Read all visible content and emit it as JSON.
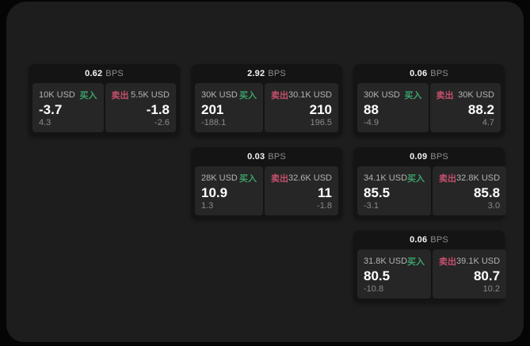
{
  "app": {
    "unit_label": "BPS",
    "buy_label": "买入",
    "sell_label": "卖出"
  },
  "colors": {
    "buy": "#3ca26a",
    "sell": "#c4506b",
    "page_bg": "#050505",
    "panel_bg": "#1d1d1e",
    "card_bg": "#141414",
    "pane_bg": "#262626",
    "value_text": "#ffffff",
    "label_text": "#b3b3b3",
    "muted_text": "#8a8a8a"
  },
  "cards": [
    {
      "bps": "0.62",
      "buy": {
        "amount": "10K USD",
        "value": "-3.7",
        "sub": "4.3"
      },
      "sell": {
        "amount": "5.5K USD",
        "value": "-1.8",
        "sub": "-2.6"
      }
    },
    {
      "bps": "2.92",
      "buy": {
        "amount": "30K USD",
        "value": "201",
        "sub": "-188.1"
      },
      "sell": {
        "amount": "30.1K USD",
        "value": "210",
        "sub": "196.5"
      }
    },
    {
      "bps": "0.06",
      "buy": {
        "amount": "30K USD",
        "value": "88",
        "sub": "-4.9"
      },
      "sell": {
        "amount": "30K USD",
        "value": "88.2",
        "sub": "4.7"
      }
    },
    {
      "bps": "0.03",
      "buy": {
        "amount": "28K USD",
        "value": "10.9",
        "sub": "1.3"
      },
      "sell": {
        "amount": "32.6K USD",
        "value": "11",
        "sub": "-1.8"
      }
    },
    {
      "bps": "0.09",
      "buy": {
        "amount": "34.1K USD",
        "value": "85.5",
        "sub": "-3.1"
      },
      "sell": {
        "amount": "32.8K USD",
        "value": "85.8",
        "sub": "3.0"
      }
    },
    {
      "bps": "0.06",
      "buy": {
        "amount": "31.8K USD",
        "value": "80.5",
        "sub": "-10.8"
      },
      "sell": {
        "amount": "39.1K USD",
        "value": "80.7",
        "sub": "10.2"
      }
    }
  ]
}
